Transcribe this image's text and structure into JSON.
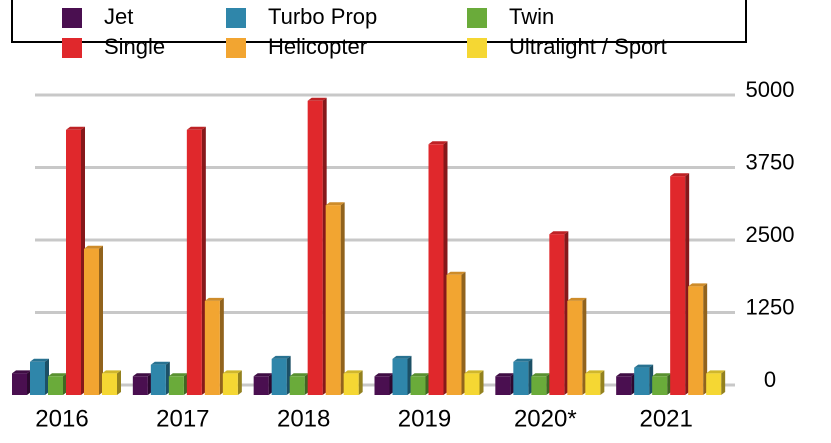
{
  "chart_data": {
    "type": "bar",
    "categories": [
      "2016",
      "2017",
      "2018",
      "2019",
      "2020*",
      "2021"
    ],
    "series": [
      {
        "name": "Jet",
        "color": "#4a0f50",
        "values": [
          200,
          150,
          150,
          150,
          150,
          150
        ]
      },
      {
        "name": "Turbo Prop",
        "color": "#2f86aa",
        "values": [
          400,
          350,
          450,
          450,
          400,
          300
        ]
      },
      {
        "name": "Twin",
        "color": "#6aab3a",
        "values": [
          150,
          150,
          150,
          150,
          150,
          150
        ]
      },
      {
        "name": "Single",
        "color": "#e0282c",
        "values": [
          4400,
          4400,
          4900,
          4150,
          2600,
          3600
        ]
      },
      {
        "name": "Helicopter",
        "color": "#f2a531",
        "values": [
          2350,
          1450,
          3100,
          1900,
          1450,
          1700
        ]
      },
      {
        "name": "Ultralight / Sport",
        "color": "#f5d733",
        "values": [
          200,
          200,
          200,
          200,
          200,
          200
        ]
      }
    ],
    "ylim": [
      0,
      5000
    ],
    "yticks": [
      0,
      1250,
      2500,
      3750,
      5000
    ],
    "grid": true,
    "legend": "top"
  }
}
